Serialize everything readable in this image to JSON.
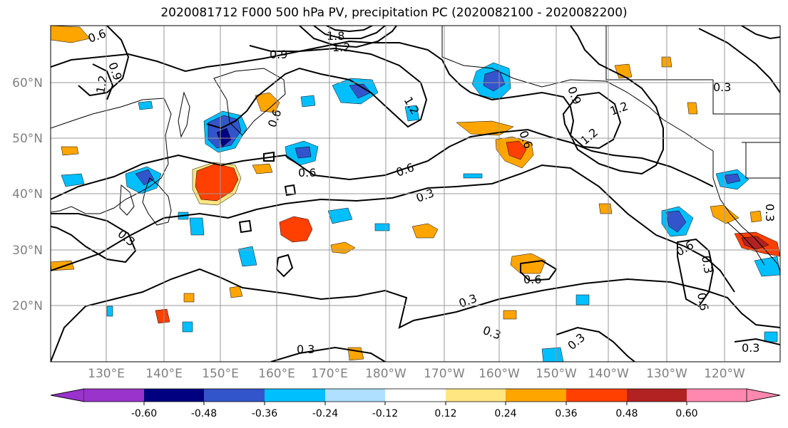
{
  "title": "2020081712 F000 500 hPa PV, precipitation PC (2020082100 - 2020082200)",
  "lat_labels": [
    "60°N",
    "50°N",
    "40°N",
    "30°N",
    "20°N"
  ],
  "lon_labels": [
    "130°E",
    "140°E",
    "150°E",
    "160°E",
    "170°E",
    "180°W",
    "170°W",
    "160°W",
    "150°W",
    "140°W",
    "130°W",
    "120°W"
  ],
  "contour_labels": [
    "0.6",
    "0.9",
    "1.2",
    "0.9",
    "1.2",
    "1.8",
    "1.2",
    "0.6",
    "0.6",
    "0.6",
    "0.3",
    "0.6",
    "1.2",
    "1.2",
    "0.9",
    "0.3",
    "0.3",
    "0.6",
    "0.3",
    "0.3",
    "0.3",
    "0.3",
    "0.3",
    "0.6",
    "0.3",
    "0.6",
    "0.3"
  ],
  "colorbar": {
    "tick_labels": [
      "-0.60",
      "-0.48",
      "-0.36",
      "-0.24",
      "-0.12",
      "0.12",
      "0.24",
      "0.36",
      "0.48",
      "0.60"
    ],
    "colors": [
      "#9933cc",
      "#000080",
      "#3355cc",
      "#00bfff",
      "#b0e0ff",
      "#ffffff",
      "#ffe680",
      "#ffa500",
      "#ff4000",
      "#b22222",
      "#ff88b0"
    ]
  },
  "fill_colors": {
    "neg1": "#00bfff",
    "neg2": "#3355cc",
    "neg3": "#000080",
    "pos1": "#ffe680",
    "pos2": "#ffa500",
    "pos3": "#ff4000",
    "pos4": "#b22222"
  }
}
